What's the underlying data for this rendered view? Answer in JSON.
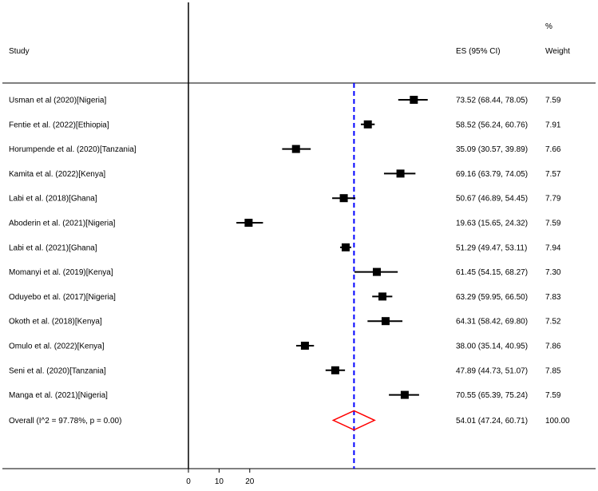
{
  "headers": {
    "study": "Study",
    "es": "ES (95% CI)",
    "weight_top": "%",
    "weight": "Weight"
  },
  "chart_data": {
    "type": "forest",
    "x_ticks": [
      0,
      10,
      20
    ],
    "xlim": [
      0,
      100
    ],
    "reference_line": 54.01,
    "studies": [
      {
        "label": "Usman et al (2020)[Nigeria]",
        "es": 73.52,
        "lo": 68.44,
        "hi": 78.05,
        "ci": "73.52 (68.44, 78.05)",
        "weight": "7.59"
      },
      {
        "label": "Fentie et al. (2022)[Ethiopia]",
        "es": 58.52,
        "lo": 56.24,
        "hi": 60.76,
        "ci": "58.52 (56.24, 60.76)",
        "weight": "7.91"
      },
      {
        "label": "Horumpende et al. (2020)[Tanzania]",
        "es": 35.09,
        "lo": 30.57,
        "hi": 39.89,
        "ci": "35.09 (30.57, 39.89)",
        "weight": "7.66"
      },
      {
        "label": "Kamita et al. (2022)[Kenya]",
        "es": 69.16,
        "lo": 63.79,
        "hi": 74.05,
        "ci": "69.16 (63.79, 74.05)",
        "weight": "7.57"
      },
      {
        "label": "Labi et al. (2018)[Ghana]",
        "es": 50.67,
        "lo": 46.89,
        "hi": 54.45,
        "ci": "50.67 (46.89, 54.45)",
        "weight": "7.79"
      },
      {
        "label": "Aboderin et al. (2021)[Nigeria]",
        "es": 19.63,
        "lo": 15.65,
        "hi": 24.32,
        "ci": "19.63 (15.65, 24.32)",
        "weight": "7.59"
      },
      {
        "label": "Labi et al. (2021)[Ghana]",
        "es": 51.29,
        "lo": 49.47,
        "hi": 53.11,
        "ci": "51.29 (49.47, 53.11)",
        "weight": "7.94"
      },
      {
        "label": "Momanyi et al. (2019)[Kenya]",
        "es": 61.45,
        "lo": 54.15,
        "hi": 68.27,
        "ci": "61.45 (54.15, 68.27)",
        "weight": "7.30"
      },
      {
        "label": "Oduyebo et al. (2017)[Nigeria]",
        "es": 63.29,
        "lo": 59.95,
        "hi": 66.5,
        "ci": "63.29 (59.95, 66.50)",
        "weight": "7.83"
      },
      {
        "label": "Okoth et al. (2018)[Kenya]",
        "es": 64.31,
        "lo": 58.42,
        "hi": 69.8,
        "ci": "64.31 (58.42, 69.80)",
        "weight": "7.52"
      },
      {
        "label": "Omulo et al. (2022)[Kenya]",
        "es": 38.0,
        "lo": 35.14,
        "hi": 40.95,
        "ci": "38.00 (35.14, 40.95)",
        "weight": "7.86"
      },
      {
        "label": "Seni et al. (2020)[Tanzania]",
        "es": 47.89,
        "lo": 44.73,
        "hi": 51.07,
        "ci": "47.89 (44.73, 51.07)",
        "weight": "7.85"
      },
      {
        "label": "Manga et al. (2021)[Nigeria]",
        "es": 70.55,
        "lo": 65.39,
        "hi": 75.24,
        "ci": "70.55 (65.39, 75.24)",
        "weight": "7.59"
      }
    ],
    "overall": {
      "label": "Overall  (I^2 = 97.78%, p = 0.00)",
      "es": 54.01,
      "lo": 47.24,
      "hi": 60.71,
      "ci": "54.01 (47.24, 60.71)",
      "weight": "100.00"
    },
    "colors": {
      "marker": "#000000",
      "reference": "#0000ff",
      "diamond": "#ff0000"
    }
  }
}
